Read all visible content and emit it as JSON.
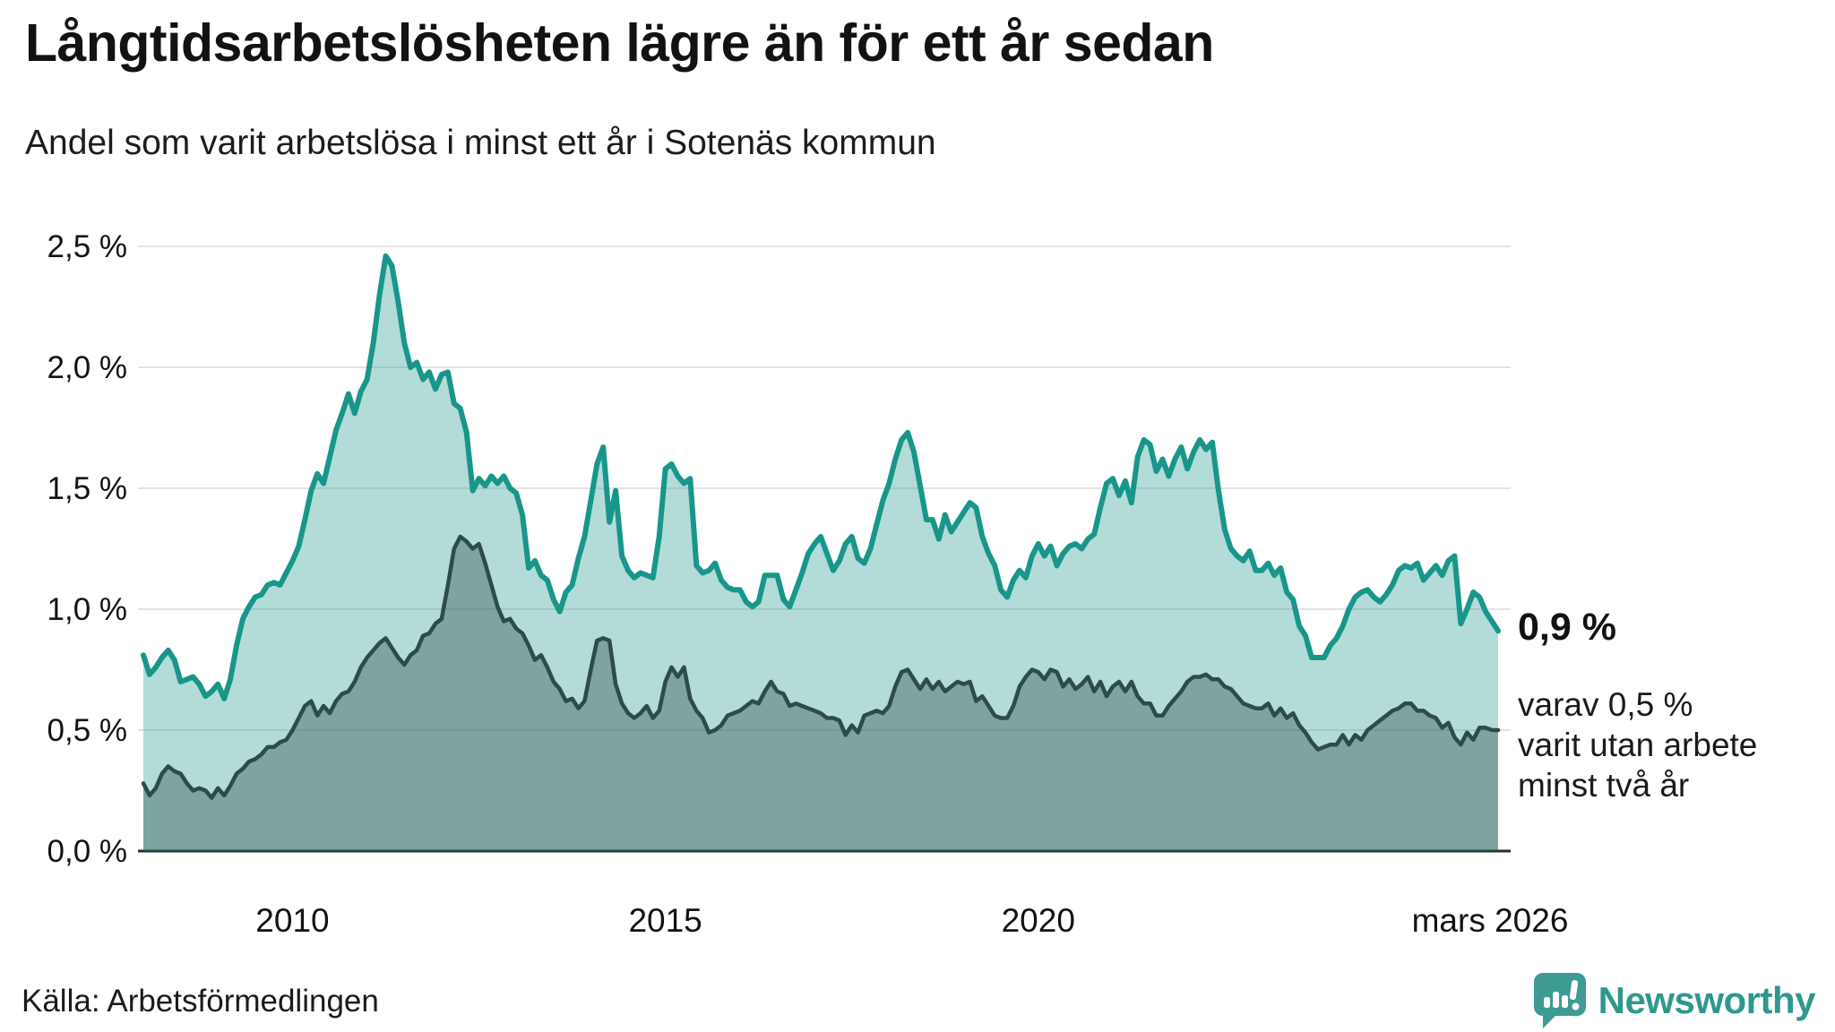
{
  "header": {
    "title": "Långtidsarbetslösheten lägre än för ett år sedan",
    "subtitle": "Andel som varit arbetslösa i minst ett år i Sotenäs kommun"
  },
  "annotations": {
    "latest_value": "0,9 %",
    "secondary_line1": "varav 0,5 %",
    "secondary_line2": "varit utan arbete",
    "secondary_line3": "minst två år"
  },
  "footer": {
    "source": "Källa: Arbetsförmedlingen",
    "brand": "Newsworthy"
  },
  "colors": {
    "series1_line": "#18968A",
    "series1_fill": "rgba(24,150,138,0.33)",
    "series2_line": "#2E4C47",
    "series2_fill": "rgba(45,80,74,0.40)",
    "gridline": "#e3e3e7",
    "baseline": "#2b2b2b",
    "brand_teal": "#2E988E",
    "logo_bg": "#3D9B94",
    "text": "#121212"
  },
  "chart_data": {
    "type": "area",
    "title": "Långtidsarbetslösheten lägre än för ett år sedan",
    "subtitle": "Andel som varit arbetslösa i minst ett år i Sotenäs kommun",
    "unit": "%",
    "grid": true,
    "ylim": [
      0,
      2.6
    ],
    "x_start": {
      "year": 2008,
      "month": 1
    },
    "x_end": {
      "year": 2026,
      "month": 3
    },
    "x_ticks": [
      {
        "label": "2010",
        "year": 2010,
        "month": 1
      },
      {
        "label": "2015",
        "year": 2015,
        "month": 1
      },
      {
        "label": "2020",
        "year": 2020,
        "month": 1
      },
      {
        "label": "mars 2026",
        "year": 2026,
        "month": 3
      }
    ],
    "y_ticks": [
      {
        "value": 0.0,
        "label": "0,0 %"
      },
      {
        "value": 0.5,
        "label": "0,5 %"
      },
      {
        "value": 1.0,
        "label": "1,0 %"
      },
      {
        "value": 1.5,
        "label": "1,5 %"
      },
      {
        "value": 2.0,
        "label": "2,0 %"
      },
      {
        "value": 2.5,
        "label": "2,5 %"
      }
    ],
    "series": [
      {
        "name": "Andel arbetslösa minst ett år",
        "key": "min_ett_ar",
        "latest_label": "0,9 %",
        "values": [
          0.81,
          0.73,
          0.76,
          0.8,
          0.83,
          0.79,
          0.7,
          0.71,
          0.72,
          0.69,
          0.64,
          0.66,
          0.69,
          0.63,
          0.71,
          0.85,
          0.96,
          1.01,
          1.05,
          1.06,
          1.1,
          1.11,
          1.1,
          1.15,
          1.2,
          1.26,
          1.37,
          1.49,
          1.56,
          1.52,
          1.63,
          1.74,
          1.81,
          1.89,
          1.81,
          1.9,
          1.95,
          2.1,
          2.3,
          2.46,
          2.42,
          2.27,
          2.1,
          2.0,
          2.02,
          1.95,
          1.98,
          1.91,
          1.97,
          1.98,
          1.85,
          1.83,
          1.73,
          1.49,
          1.54,
          1.51,
          1.55,
          1.52,
          1.55,
          1.5,
          1.48,
          1.39,
          1.17,
          1.2,
          1.14,
          1.12,
          1.04,
          0.99,
          1.07,
          1.1,
          1.21,
          1.3,
          1.45,
          1.6,
          1.67,
          1.36,
          1.49,
          1.22,
          1.16,
          1.13,
          1.15,
          1.14,
          1.13,
          1.3,
          1.58,
          1.6,
          1.55,
          1.52,
          1.54,
          1.18,
          1.15,
          1.16,
          1.19,
          1.12,
          1.09,
          1.08,
          1.08,
          1.03,
          1.01,
          1.03,
          1.14,
          1.14,
          1.14,
          1.04,
          1.01,
          1.08,
          1.15,
          1.23,
          1.27,
          1.3,
          1.23,
          1.16,
          1.2,
          1.27,
          1.3,
          1.21,
          1.19,
          1.25,
          1.35,
          1.45,
          1.52,
          1.62,
          1.7,
          1.73,
          1.65,
          1.51,
          1.37,
          1.37,
          1.29,
          1.39,
          1.32,
          1.36,
          1.4,
          1.44,
          1.42,
          1.3,
          1.23,
          1.18,
          1.08,
          1.05,
          1.12,
          1.16,
          1.13,
          1.22,
          1.27,
          1.22,
          1.26,
          1.18,
          1.23,
          1.26,
          1.27,
          1.25,
          1.29,
          1.31,
          1.42,
          1.52,
          1.54,
          1.47,
          1.53,
          1.44,
          1.63,
          1.7,
          1.68,
          1.57,
          1.62,
          1.55,
          1.62,
          1.67,
          1.58,
          1.65,
          1.7,
          1.66,
          1.69,
          1.49,
          1.33,
          1.25,
          1.22,
          1.2,
          1.24,
          1.16,
          1.16,
          1.19,
          1.14,
          1.17,
          1.07,
          1.04,
          0.93,
          0.89,
          0.8,
          0.8,
          0.8,
          0.85,
          0.88,
          0.93,
          1.0,
          1.05,
          1.07,
          1.08,
          1.05,
          1.03,
          1.06,
          1.1,
          1.16,
          1.18,
          1.17,
          1.19,
          1.12,
          1.15,
          1.18,
          1.14,
          1.2,
          1.22,
          0.94,
          1.0,
          1.07,
          1.05,
          0.99,
          0.95,
          0.91
        ]
      },
      {
        "name": "varav arbetslösa minst två år",
        "key": "min_tva_ar",
        "latest_label": "0,5 %",
        "values": [
          0.28,
          0.23,
          0.26,
          0.32,
          0.35,
          0.33,
          0.32,
          0.28,
          0.25,
          0.26,
          0.25,
          0.22,
          0.26,
          0.23,
          0.27,
          0.32,
          0.34,
          0.37,
          0.38,
          0.4,
          0.43,
          0.43,
          0.45,
          0.46,
          0.5,
          0.55,
          0.6,
          0.62,
          0.56,
          0.6,
          0.57,
          0.62,
          0.65,
          0.66,
          0.7,
          0.76,
          0.8,
          0.83,
          0.86,
          0.88,
          0.84,
          0.8,
          0.77,
          0.81,
          0.83,
          0.89,
          0.9,
          0.94,
          0.96,
          1.1,
          1.25,
          1.3,
          1.28,
          1.25,
          1.27,
          1.19,
          1.1,
          1.01,
          0.95,
          0.96,
          0.92,
          0.9,
          0.85,
          0.79,
          0.81,
          0.76,
          0.7,
          0.67,
          0.62,
          0.63,
          0.59,
          0.62,
          0.75,
          0.87,
          0.88,
          0.87,
          0.69,
          0.61,
          0.57,
          0.55,
          0.57,
          0.6,
          0.55,
          0.58,
          0.7,
          0.76,
          0.72,
          0.76,
          0.63,
          0.58,
          0.55,
          0.49,
          0.5,
          0.52,
          0.56,
          0.57,
          0.58,
          0.6,
          0.62,
          0.61,
          0.66,
          0.7,
          0.66,
          0.65,
          0.6,
          0.61,
          0.6,
          0.59,
          0.58,
          0.57,
          0.55,
          0.55,
          0.54,
          0.48,
          0.52,
          0.49,
          0.56,
          0.57,
          0.58,
          0.57,
          0.6,
          0.68,
          0.74,
          0.75,
          0.71,
          0.67,
          0.71,
          0.67,
          0.7,
          0.66,
          0.68,
          0.7,
          0.69,
          0.7,
          0.62,
          0.64,
          0.6,
          0.56,
          0.55,
          0.55,
          0.6,
          0.68,
          0.72,
          0.75,
          0.74,
          0.71,
          0.75,
          0.74,
          0.68,
          0.71,
          0.67,
          0.69,
          0.72,
          0.66,
          0.7,
          0.64,
          0.68,
          0.7,
          0.66,
          0.7,
          0.64,
          0.61,
          0.61,
          0.56,
          0.56,
          0.6,
          0.63,
          0.66,
          0.7,
          0.72,
          0.72,
          0.73,
          0.71,
          0.71,
          0.68,
          0.67,
          0.64,
          0.61,
          0.6,
          0.59,
          0.59,
          0.61,
          0.56,
          0.59,
          0.55,
          0.57,
          0.52,
          0.49,
          0.45,
          0.42,
          0.43,
          0.44,
          0.44,
          0.48,
          0.44,
          0.48,
          0.46,
          0.5,
          0.52,
          0.54,
          0.56,
          0.58,
          0.59,
          0.61,
          0.61,
          0.58,
          0.58,
          0.56,
          0.55,
          0.51,
          0.53,
          0.47,
          0.44,
          0.49,
          0.46,
          0.51,
          0.51,
          0.5,
          0.5
        ]
      }
    ]
  }
}
